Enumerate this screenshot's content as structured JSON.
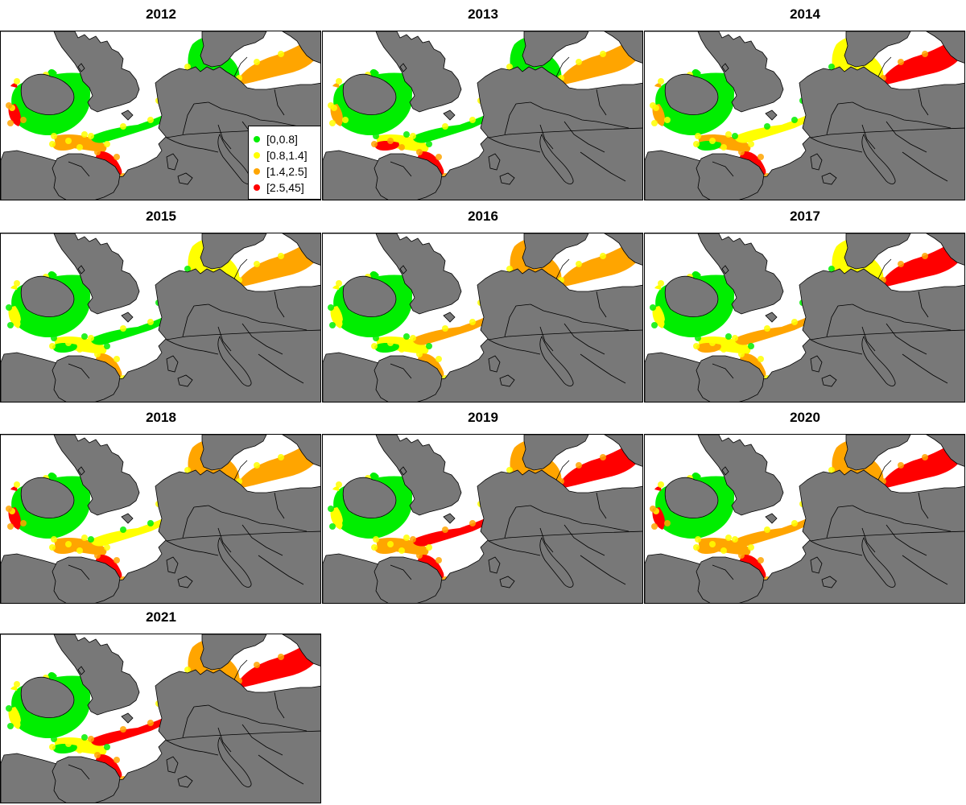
{
  "colors": {
    "land": "#787878",
    "sea": "#ffffff",
    "border": "#000000"
  },
  "legend": [
    {
      "label": "[0,0.8]",
      "color": "#00ee00"
    },
    {
      "label": "[0.8,1.4]",
      "color": "#ffff00"
    },
    {
      "label": "[1.4,2.5]",
      "color": "#ffa500"
    },
    {
      "label": "[2.5,45]",
      "color": "#ff0000"
    }
  ],
  "panels": [
    {
      "year": "2012",
      "levels": {
        "irish_sea": 0,
        "atlantic_west": 3,
        "celtic_sea": 2,
        "biscay": 3,
        "channel": 0,
        "north_sea": 0,
        "baltic": 2,
        "iberia": 2
      }
    },
    {
      "year": "2013",
      "levels": {
        "irish_sea": 0,
        "atlantic_west": 2,
        "celtic_sea": 1,
        "biscay": 3,
        "channel": 0,
        "north_sea": 0,
        "baltic": 2,
        "iberia": 3
      }
    },
    {
      "year": "2014",
      "levels": {
        "irish_sea": 0,
        "atlantic_west": 2,
        "celtic_sea": 2,
        "biscay": 3,
        "channel": 1,
        "north_sea": 1,
        "baltic": 3,
        "iberia": 0
      }
    },
    {
      "year": "2015",
      "levels": {
        "irish_sea": 0,
        "atlantic_west": 1,
        "celtic_sea": 1,
        "biscay": 2,
        "channel": 0,
        "north_sea": 1,
        "baltic": 2,
        "iberia": 0
      }
    },
    {
      "year": "2016",
      "levels": {
        "irish_sea": 0,
        "atlantic_west": 1,
        "celtic_sea": 1,
        "biscay": 2,
        "channel": 2,
        "north_sea": 2,
        "baltic": 2,
        "iberia": 0
      }
    },
    {
      "year": "2017",
      "levels": {
        "irish_sea": 0,
        "atlantic_west": 1,
        "celtic_sea": 1,
        "biscay": 2,
        "channel": 2,
        "north_sea": 1,
        "baltic": 3,
        "iberia": 2
      }
    },
    {
      "year": "2018",
      "levels": {
        "irish_sea": 0,
        "atlantic_west": 3,
        "celtic_sea": 2,
        "biscay": 3,
        "channel": 1,
        "north_sea": 2,
        "baltic": 2,
        "iberia": 2
      }
    },
    {
      "year": "2019",
      "levels": {
        "irish_sea": 0,
        "atlantic_west": 1,
        "celtic_sea": 2,
        "biscay": 3,
        "channel": 3,
        "north_sea": 2,
        "baltic": 3,
        "iberia": 2
      }
    },
    {
      "year": "2020",
      "levels": {
        "irish_sea": 0,
        "atlantic_west": 3,
        "celtic_sea": 2,
        "biscay": 3,
        "channel": 2,
        "north_sea": 2,
        "baltic": 3,
        "iberia": 2
      }
    },
    {
      "year": "2021",
      "levels": {
        "irish_sea": 0,
        "atlantic_west": 1,
        "celtic_sea": 1,
        "biscay": 3,
        "channel": 3,
        "north_sea": 2,
        "baltic": 3,
        "iberia": 0
      }
    }
  ]
}
